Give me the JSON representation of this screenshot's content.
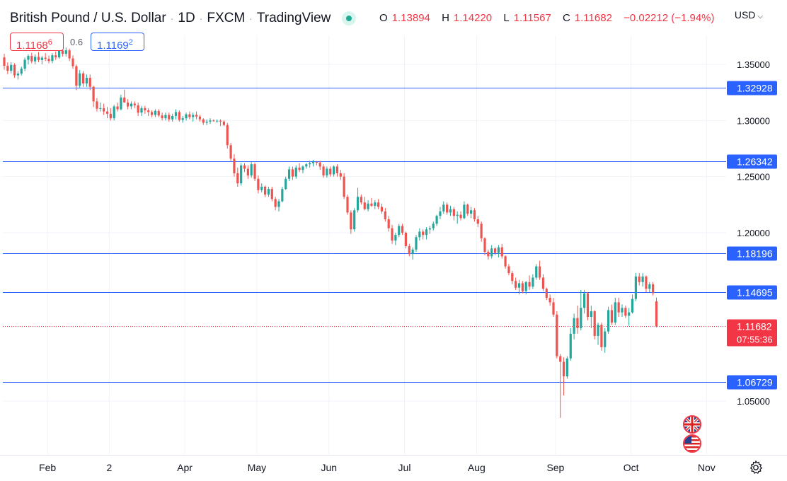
{
  "header": {
    "symbol": "British Pound / U.S. Dollar",
    "interval": "1D",
    "exchange": "FXCM",
    "source": "TradingView",
    "live_dot_color": "#22ab94"
  },
  "ohlc": {
    "o_label": "O",
    "o": "1.13894",
    "h_label": "H",
    "h": "1.14220",
    "l_label": "L",
    "l": "1.11567",
    "c_label": "C",
    "c": "1.11682",
    "change": "−0.02212 (−1.94%)"
  },
  "currency": {
    "label": "USD",
    "icon": "chevron-down-icon"
  },
  "price_boxes": {
    "sell_main": "1.1168",
    "sell_pip": "6",
    "spread": "0.6",
    "buy_main": "1.1169",
    "buy_pip": "2"
  },
  "icons": {
    "settings": "gear-icon",
    "flag_gb": "uk-flag-icon",
    "flag_us": "us-flag-icon"
  },
  "colors": {
    "up": "#26a69a",
    "down": "#ef5350",
    "level_line": "#2962ff",
    "level_label_bg": "#2962ff",
    "current_price_bg": "#f23645"
  },
  "chart_data": {
    "type": "candlestick",
    "ylim": [
      1.0,
      1.37
    ],
    "y_ticks": [
      "1.35000",
      "1.30000",
      "1.25000",
      "1.20000",
      "1.05000"
    ],
    "x_ticks": [
      {
        "label": "Feb",
        "i": 6
      },
      {
        "label": "2",
        "i": 24
      },
      {
        "label": "Apr",
        "i": 46
      },
      {
        "label": "May",
        "i": 67
      },
      {
        "label": "Jun",
        "i": 88
      },
      {
        "label": "Jul",
        "i": 110
      },
      {
        "label": "Aug",
        "i": 131
      },
      {
        "label": "Sep",
        "i": 154
      },
      {
        "label": "Oct",
        "i": 176
      },
      {
        "label": "Nov",
        "i": 198
      }
    ],
    "horizontal_levels": [
      {
        "value": 1.32928,
        "label": "1.32928"
      },
      {
        "value": 1.26342,
        "label": "1.26342"
      },
      {
        "value": 1.18196,
        "label": "1.18196"
      },
      {
        "value": 1.14695,
        "label": "1.14695"
      },
      {
        "value": 1.06729,
        "label": "1.06729"
      }
    ],
    "current_price": {
      "value": 1.11682,
      "label": "1.11682",
      "countdown": "07:55:36"
    },
    "candles": [
      [
        1.3562,
        1.3594,
        1.3452,
        1.3487
      ],
      [
        1.3487,
        1.3518,
        1.3412,
        1.3443
      ],
      [
        1.3443,
        1.352,
        1.342,
        1.3495
      ],
      [
        1.3495,
        1.351,
        1.338,
        1.3402
      ],
      [
        1.3402,
        1.344,
        1.3365,
        1.3418
      ],
      [
        1.3418,
        1.348,
        1.34,
        1.3462
      ],
      [
        1.3462,
        1.356,
        1.344,
        1.3541
      ],
      [
        1.3541,
        1.359,
        1.35,
        1.3575
      ],
      [
        1.3575,
        1.3604,
        1.351,
        1.3527
      ],
      [
        1.3527,
        1.359,
        1.35,
        1.3568
      ],
      [
        1.3568,
        1.361,
        1.352,
        1.3538
      ],
      [
        1.3538,
        1.3575,
        1.35,
        1.356
      ],
      [
        1.356,
        1.36,
        1.353,
        1.3549
      ],
      [
        1.3549,
        1.358,
        1.351,
        1.353
      ],
      [
        1.353,
        1.36,
        1.351,
        1.3581
      ],
      [
        1.3581,
        1.3615,
        1.354,
        1.3562
      ],
      [
        1.3562,
        1.365,
        1.355,
        1.3623
      ],
      [
        1.3623,
        1.364,
        1.357,
        1.3594
      ],
      [
        1.3594,
        1.365,
        1.357,
        1.3625
      ],
      [
        1.3625,
        1.364,
        1.353,
        1.3553
      ],
      [
        1.3553,
        1.358,
        1.346,
        1.3484
      ],
      [
        1.3484,
        1.3498,
        1.327,
        1.331
      ],
      [
        1.331,
        1.345,
        1.329,
        1.342
      ],
      [
        1.342,
        1.344,
        1.33,
        1.333
      ],
      [
        1.333,
        1.341,
        1.33,
        1.338
      ],
      [
        1.338,
        1.341,
        1.327,
        1.33
      ],
      [
        1.33,
        1.331,
        1.312,
        1.317
      ],
      [
        1.317,
        1.32,
        1.308,
        1.3105
      ],
      [
        1.3105,
        1.316,
        1.308,
        1.311
      ],
      [
        1.311,
        1.315,
        1.305,
        1.308
      ],
      [
        1.308,
        1.312,
        1.302,
        1.306
      ],
      [
        1.306,
        1.311,
        1.3,
        1.302
      ],
      [
        1.302,
        1.314,
        1.3,
        1.3125
      ],
      [
        1.3125,
        1.316,
        1.308,
        1.31
      ],
      [
        1.31,
        1.323,
        1.309,
        1.3205
      ],
      [
        1.3205,
        1.3275,
        1.318,
        1.316
      ],
      [
        1.316,
        1.319,
        1.31,
        1.3125
      ],
      [
        1.3125,
        1.317,
        1.31,
        1.315
      ],
      [
        1.315,
        1.317,
        1.311,
        1.3135
      ],
      [
        1.3135,
        1.316,
        1.304,
        1.307
      ],
      [
        1.307,
        1.313,
        1.304,
        1.311
      ],
      [
        1.311,
        1.313,
        1.306,
        1.309
      ],
      [
        1.309,
        1.311,
        1.304,
        1.3075
      ],
      [
        1.3075,
        1.309,
        1.303,
        1.305
      ],
      [
        1.305,
        1.31,
        1.303,
        1.3085
      ],
      [
        1.3085,
        1.31,
        1.303,
        1.3045
      ],
      [
        1.3045,
        1.307,
        1.3,
        1.302
      ],
      [
        1.302,
        1.307,
        1.3,
        1.305
      ],
      [
        1.305,
        1.307,
        1.299,
        1.301
      ],
      [
        1.301,
        1.306,
        1.299,
        1.304
      ],
      [
        1.304,
        1.31,
        1.301,
        1.3075
      ],
      [
        1.3075,
        1.309,
        1.299,
        1.3005
      ],
      [
        1.3005,
        1.304,
        1.298,
        1.302
      ],
      [
        1.302,
        1.307,
        1.3,
        1.3055
      ],
      [
        1.3055,
        1.308,
        1.301,
        1.303
      ],
      [
        1.303,
        1.307,
        1.299,
        1.305
      ],
      [
        1.305,
        1.308,
        1.301,
        1.3035
      ],
      [
        1.3035,
        1.305,
        1.299,
        1.301
      ],
      [
        1.301,
        1.302,
        1.296,
        1.298
      ],
      [
        1.298,
        1.301,
        1.296,
        1.299
      ],
      [
        1.299,
        1.302,
        1.297,
        1.3
      ],
      [
        1.3,
        1.301,
        1.299,
        1.2995
      ],
      [
        1.2995,
        1.301,
        1.298,
        1.2998
      ],
      [
        1.2998,
        1.301,
        1.295,
        1.299
      ],
      [
        1.299,
        1.3,
        1.295,
        1.296
      ],
      [
        1.296,
        1.298,
        1.275,
        1.278
      ],
      [
        1.278,
        1.28,
        1.264,
        1.266
      ],
      [
        1.266,
        1.27,
        1.25,
        1.253
      ],
      [
        1.253,
        1.258,
        1.241,
        1.244
      ],
      [
        1.244,
        1.262,
        1.242,
        1.26
      ],
      [
        1.26,
        1.262,
        1.254,
        1.257
      ],
      [
        1.257,
        1.26,
        1.248,
        1.251
      ],
      [
        1.251,
        1.263,
        1.249,
        1.261
      ],
      [
        1.261,
        1.2625,
        1.246,
        1.248
      ],
      [
        1.248,
        1.251,
        1.235,
        1.238
      ],
      [
        1.238,
        1.244,
        1.236,
        1.241
      ],
      [
        1.241,
        1.242,
        1.232,
        1.234
      ],
      [
        1.234,
        1.241,
        1.232,
        1.239
      ],
      [
        1.239,
        1.241,
        1.228,
        1.23
      ],
      [
        1.23,
        1.232,
        1.22,
        1.223
      ],
      [
        1.223,
        1.23,
        1.219,
        1.228
      ],
      [
        1.228,
        1.241,
        1.227,
        1.239
      ],
      [
        1.239,
        1.25,
        1.238,
        1.248
      ],
      [
        1.248,
        1.259,
        1.246,
        1.2565
      ],
      [
        1.2565,
        1.259,
        1.247,
        1.25
      ],
      [
        1.25,
        1.26,
        1.248,
        1.258
      ],
      [
        1.258,
        1.262,
        1.254,
        1.256
      ],
      [
        1.256,
        1.26,
        1.253,
        1.259
      ],
      [
        1.259,
        1.262,
        1.257,
        1.261
      ],
      [
        1.261,
        1.264,
        1.258,
        1.262
      ],
      [
        1.262,
        1.265,
        1.259,
        1.263
      ],
      [
        1.263,
        1.264,
        1.26,
        1.2625
      ],
      [
        1.2625,
        1.264,
        1.256,
        1.259
      ],
      [
        1.259,
        1.261,
        1.249,
        1.251
      ],
      [
        1.251,
        1.259,
        1.249,
        1.257
      ],
      [
        1.257,
        1.259,
        1.25,
        1.252
      ],
      [
        1.252,
        1.26,
        1.25,
        1.259
      ],
      [
        1.259,
        1.261,
        1.25,
        1.253
      ],
      [
        1.253,
        1.256,
        1.247,
        1.25
      ],
      [
        1.25,
        1.253,
        1.23,
        1.232
      ],
      [
        1.232,
        1.234,
        1.216,
        1.218
      ],
      [
        1.218,
        1.22,
        1.199,
        1.203
      ],
      [
        1.203,
        1.222,
        1.201,
        1.22
      ],
      [
        1.22,
        1.24,
        1.218,
        1.232
      ],
      [
        1.232,
        1.234,
        1.225,
        1.227
      ],
      [
        1.227,
        1.232,
        1.22,
        1.221
      ],
      [
        1.221,
        1.229,
        1.219,
        1.226
      ],
      [
        1.226,
        1.231,
        1.223,
        1.224
      ],
      [
        1.224,
        1.229,
        1.221,
        1.227
      ],
      [
        1.227,
        1.23,
        1.221,
        1.223
      ],
      [
        1.223,
        1.226,
        1.217,
        1.219
      ],
      [
        1.219,
        1.222,
        1.21,
        1.212
      ],
      [
        1.212,
        1.215,
        1.201,
        1.204
      ],
      [
        1.204,
        1.207,
        1.19,
        1.193
      ],
      [
        1.193,
        1.2,
        1.189,
        1.198
      ],
      [
        1.198,
        1.208,
        1.196,
        1.206
      ],
      [
        1.206,
        1.208,
        1.198,
        1.2
      ],
      [
        1.2,
        1.201,
        1.186,
        1.188
      ],
      [
        1.188,
        1.19,
        1.179,
        1.181
      ],
      [
        1.181,
        1.187,
        1.176,
        1.185
      ],
      [
        1.185,
        1.198,
        1.183,
        1.196
      ],
      [
        1.196,
        1.204,
        1.193,
        1.201
      ],
      [
        1.201,
        1.203,
        1.194,
        1.198
      ],
      [
        1.198,
        1.205,
        1.194,
        1.203
      ],
      [
        1.203,
        1.206,
        1.199,
        1.204
      ],
      [
        1.204,
        1.21,
        1.202,
        1.208
      ],
      [
        1.208,
        1.216,
        1.206,
        1.215
      ],
      [
        1.215,
        1.223,
        1.212,
        1.219
      ],
      [
        1.219,
        1.228,
        1.217,
        1.225
      ],
      [
        1.225,
        1.227,
        1.216,
        1.218
      ],
      [
        1.218,
        1.224,
        1.215,
        1.221
      ],
      [
        1.221,
        1.223,
        1.211,
        1.215
      ],
      [
        1.215,
        1.219,
        1.208,
        1.216
      ],
      [
        1.216,
        1.219,
        1.211,
        1.213
      ],
      [
        1.213,
        1.228,
        1.212,
        1.225
      ],
      [
        1.225,
        1.226,
        1.215,
        1.217
      ],
      [
        1.217,
        1.223,
        1.213,
        1.22
      ],
      [
        1.22,
        1.222,
        1.21,
        1.212
      ],
      [
        1.212,
        1.215,
        1.205,
        1.208
      ],
      [
        1.208,
        1.21,
        1.192,
        1.195
      ],
      [
        1.195,
        1.196,
        1.18,
        1.183
      ],
      [
        1.183,
        1.185,
        1.176,
        1.179
      ],
      [
        1.179,
        1.189,
        1.177,
        1.186
      ],
      [
        1.186,
        1.187,
        1.18,
        1.182
      ],
      [
        1.182,
        1.189,
        1.178,
        1.187
      ],
      [
        1.187,
        1.19,
        1.177,
        1.179
      ],
      [
        1.179,
        1.18,
        1.168,
        1.17
      ],
      [
        1.17,
        1.172,
        1.162,
        1.164
      ],
      [
        1.164,
        1.166,
        1.154,
        1.157
      ],
      [
        1.157,
        1.16,
        1.149,
        1.151
      ],
      [
        1.151,
        1.158,
        1.145,
        1.155
      ],
      [
        1.155,
        1.157,
        1.146,
        1.148
      ],
      [
        1.148,
        1.157,
        1.145,
        1.156
      ],
      [
        1.156,
        1.162,
        1.149,
        1.152
      ],
      [
        1.152,
        1.163,
        1.15,
        1.16
      ],
      [
        1.16,
        1.172,
        1.158,
        1.17
      ],
      [
        1.17,
        1.175,
        1.158,
        1.16
      ],
      [
        1.16,
        1.163,
        1.148,
        1.15
      ],
      [
        1.15,
        1.151,
        1.14,
        1.142
      ],
      [
        1.142,
        1.145,
        1.135,
        1.138
      ],
      [
        1.138,
        1.142,
        1.125,
        1.127
      ],
      [
        1.127,
        1.13,
        1.088,
        1.09
      ],
      [
        1.09,
        1.092,
        1.035,
        1.085
      ],
      [
        1.085,
        1.089,
        1.055,
        1.072
      ],
      [
        1.072,
        1.09,
        1.07,
        1.088
      ],
      [
        1.088,
        1.115,
        1.086,
        1.11
      ],
      [
        1.11,
        1.128,
        1.105,
        1.124
      ],
      [
        1.124,
        1.135,
        1.11,
        1.115
      ],
      [
        1.115,
        1.149,
        1.113,
        1.133
      ],
      [
        1.133,
        1.149,
        1.128,
        1.146
      ],
      [
        1.146,
        1.147,
        1.122,
        1.125
      ],
      [
        1.125,
        1.135,
        1.115,
        1.13
      ],
      [
        1.13,
        1.131,
        1.105,
        1.108
      ],
      [
        1.108,
        1.12,
        1.1,
        1.118
      ],
      [
        1.118,
        1.12,
        1.095,
        1.098
      ],
      [
        1.098,
        1.115,
        1.093,
        1.112
      ],
      [
        1.112,
        1.134,
        1.11,
        1.131
      ],
      [
        1.131,
        1.136,
        1.118,
        1.12
      ],
      [
        1.12,
        1.142,
        1.118,
        1.138
      ],
      [
        1.138,
        1.142,
        1.125,
        1.129
      ],
      [
        1.129,
        1.136,
        1.125,
        1.133
      ],
      [
        1.133,
        1.135,
        1.124,
        1.126
      ],
      [
        1.126,
        1.133,
        1.117,
        1.129
      ],
      [
        1.129,
        1.145,
        1.128,
        1.141
      ],
      [
        1.141,
        1.164,
        1.139,
        1.161
      ],
      [
        1.161,
        1.164,
        1.153,
        1.156
      ],
      [
        1.156,
        1.164,
        1.152,
        1.161
      ],
      [
        1.161,
        1.162,
        1.147,
        1.15
      ],
      [
        1.15,
        1.156,
        1.147,
        1.154
      ],
      [
        1.154,
        1.156,
        1.144,
        1.1462
      ],
      [
        1.1389,
        1.1422,
        1.1157,
        1.1168
      ]
    ]
  }
}
